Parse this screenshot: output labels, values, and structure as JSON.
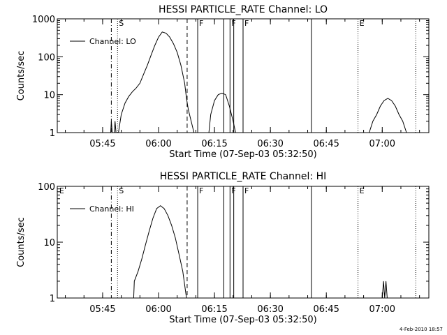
{
  "footer": {
    "timestamp": "4-Feb-2010 18:57"
  },
  "chart_data": [
    {
      "type": "line",
      "title": "HESSI PARTICLE_RATE Channel: LO",
      "xlabel": "Start Time (07-Sep-03 05:32:50)",
      "ylabel": "Counts/sec",
      "yscale": "log",
      "ylim": [
        1,
        1000
      ],
      "xlim": [
        "05:32:50",
        "07:12:30"
      ],
      "yticks": [
        1,
        10,
        100,
        1000
      ],
      "xticks": [
        "05:45",
        "06:00",
        "06:15",
        "06:30",
        "06:45",
        "07:00"
      ],
      "legend": {
        "label": "Channel: LO",
        "position": "top-left"
      },
      "series": [
        {
          "name": "Channel: LO",
          "points": [
            [
              "05:47:10",
              1
            ],
            [
              "05:47:20",
              2
            ],
            [
              "05:47:35",
              1
            ],
            [
              "05:48:10",
              1
            ],
            [
              "05:48:20",
              2
            ],
            [
              "05:48:35",
              1
            ],
            [
              "05:49:15",
              1
            ],
            [
              "05:50:00",
              3
            ],
            [
              "05:51:00",
              6
            ],
            [
              "05:52:00",
              9
            ],
            [
              "05:53:00",
              12
            ],
            [
              "05:54:00",
              15
            ],
            [
              "05:55:00",
              20
            ],
            [
              "05:56:00",
              35
            ],
            [
              "05:57:00",
              60
            ],
            [
              "05:58:00",
              110
            ],
            [
              "05:59:00",
              200
            ],
            [
              "06:00:00",
              330
            ],
            [
              "06:01:00",
              450
            ],
            [
              "06:02:00",
              420
            ],
            [
              "06:03:00",
              330
            ],
            [
              "06:04:00",
              220
            ],
            [
              "06:05:00",
              130
            ],
            [
              "06:06:00",
              60
            ],
            [
              "06:07:00",
              20
            ],
            [
              "06:07:30",
              8
            ],
            [
              "06:08:00",
              4
            ],
            [
              "06:08:45",
              2
            ],
            [
              "06:09:30",
              1
            ],
            [
              "06:13:30",
              1
            ],
            [
              "06:14:00",
              3
            ],
            [
              "06:15:00",
              7
            ],
            [
              "06:16:00",
              10
            ],
            [
              "06:17:00",
              11
            ],
            [
              "06:18:00",
              10
            ],
            [
              "06:19:00",
              5
            ],
            [
              "06:20:00",
              2
            ],
            [
              "06:20:40",
              1
            ],
            [
              "06:56:30",
              1
            ],
            [
              "06:57:30",
              2
            ],
            [
              "06:58:30",
              3
            ],
            [
              "06:59:30",
              5
            ],
            [
              "07:00:30",
              7
            ],
            [
              "07:01:30",
              8
            ],
            [
              "07:02:30",
              7
            ],
            [
              "07:03:30",
              5
            ],
            [
              "07:04:30",
              3
            ],
            [
              "07:05:30",
              2
            ],
            [
              "07:06:30",
              1
            ]
          ]
        }
      ],
      "annotations": [
        {
          "time": "05:47:20",
          "style": "dash-dot",
          "label": ""
        },
        {
          "time": "05:49:00",
          "style": "dotted",
          "label": "S"
        },
        {
          "time": "06:07:40",
          "style": "dashed",
          "label": ""
        },
        {
          "time": "06:10:30",
          "style": "solid",
          "label": "F"
        },
        {
          "time": "06:17:30",
          "style": "solid",
          "label": ""
        },
        {
          "time": "06:19:10",
          "style": "solid",
          "label": "F"
        },
        {
          "time": "06:20:10",
          "style": "solid",
          "label": ""
        },
        {
          "time": "06:22:40",
          "style": "solid",
          "label": "F"
        },
        {
          "time": "06:41:00",
          "style": "solid",
          "label": ""
        },
        {
          "time": "06:53:30",
          "style": "dotted",
          "label": "E"
        },
        {
          "time": "07:09:00",
          "style": "dotted",
          "label": ""
        }
      ]
    },
    {
      "type": "line",
      "title": "HESSI PARTICLE_RATE Channel: HI",
      "xlabel": "Start Time (07-Sep-03 05:32:50)",
      "ylabel": "Counts/sec",
      "yscale": "log",
      "ylim": [
        1,
        100
      ],
      "xlim": [
        "05:32:50",
        "07:12:30"
      ],
      "yticks": [
        1,
        10,
        100
      ],
      "xticks": [
        "05:45",
        "06:00",
        "06:15",
        "06:30",
        "06:45",
        "07:00"
      ],
      "legend": {
        "label": "Channel: HI",
        "position": "top-left"
      },
      "series": [
        {
          "name": "Channel: HI",
          "points": [
            [
              "05:52:30",
              1
            ],
            [
              "05:53:20",
              1
            ],
            [
              "05:53:30",
              2
            ],
            [
              "05:54:30",
              3
            ],
            [
              "05:55:30",
              5
            ],
            [
              "05:56:30",
              9
            ],
            [
              "05:57:30",
              16
            ],
            [
              "05:58:30",
              27
            ],
            [
              "05:59:30",
              40
            ],
            [
              "06:00:30",
              45
            ],
            [
              "06:01:30",
              40
            ],
            [
              "06:02:30",
              30
            ],
            [
              "06:03:30",
              20
            ],
            [
              "06:04:30",
              12
            ],
            [
              "06:05:30",
              6
            ],
            [
              "06:06:30",
              3
            ],
            [
              "06:07:30",
              1
            ],
            [
              "07:00:00",
              1
            ],
            [
              "07:00:20",
              2
            ],
            [
              "07:00:40",
              1
            ],
            [
              "07:01:00",
              2
            ],
            [
              "07:01:20",
              1
            ]
          ]
        }
      ],
      "annotations": [
        {
          "time": "05:33:00",
          "style": "none",
          "label": "E"
        },
        {
          "time": "05:47:20",
          "style": "dash-dot",
          "label": ""
        },
        {
          "time": "05:49:00",
          "style": "dotted",
          "label": "S"
        },
        {
          "time": "06:07:40",
          "style": "dashed",
          "label": ""
        },
        {
          "time": "06:10:30",
          "style": "solid",
          "label": "F"
        },
        {
          "time": "06:17:30",
          "style": "solid",
          "label": ""
        },
        {
          "time": "06:19:10",
          "style": "solid",
          "label": "F"
        },
        {
          "time": "06:20:10",
          "style": "solid",
          "label": ""
        },
        {
          "time": "06:22:40",
          "style": "solid",
          "label": "F"
        },
        {
          "time": "06:41:00",
          "style": "solid",
          "label": ""
        },
        {
          "time": "06:53:30",
          "style": "dotted",
          "label": "E"
        },
        {
          "time": "07:09:00",
          "style": "dotted",
          "label": ""
        }
      ]
    }
  ]
}
